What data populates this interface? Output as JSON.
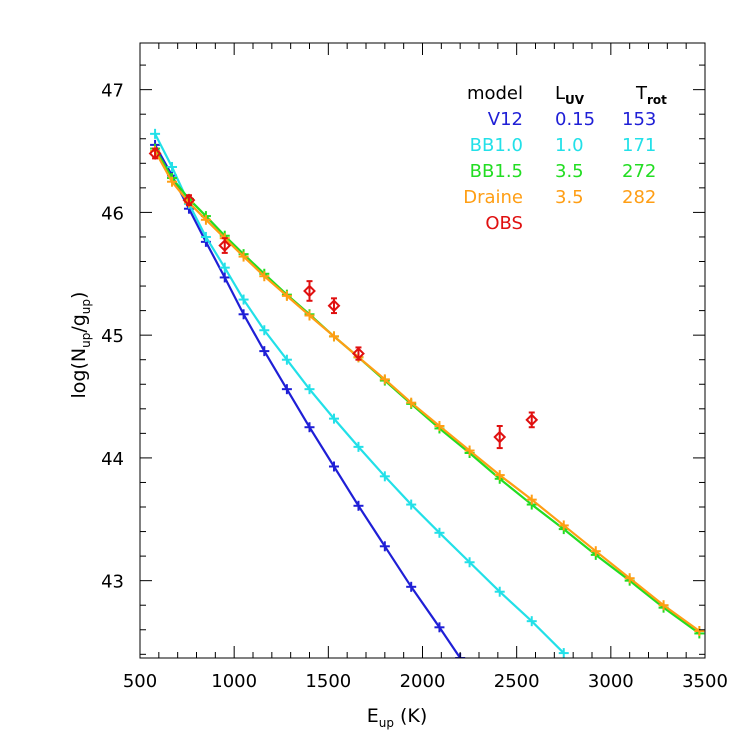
{
  "chart_data": {
    "type": "line",
    "xlabel": "E",
    "xlabel_sub": "up",
    "xlabel_unit": "(K)",
    "ylabel_parts": [
      "log(N",
      "up",
      "/g",
      "up",
      ")"
    ],
    "xlim": [
      500,
      3500
    ],
    "ylim": [
      42.37,
      47.38
    ],
    "x_ticks": [
      500,
      1000,
      1500,
      2000,
      2500,
      3000,
      3500
    ],
    "y_ticks": [
      43,
      44,
      45,
      46,
      47
    ],
    "legend": {
      "placement": "top-right",
      "headers": {
        "model": "model",
        "luv": "L",
        "luv_sub": "UV",
        "trot": "T",
        "trot_sub": "rot"
      },
      "rows": [
        {
          "model": "V12",
          "luv": "0.15",
          "trot": "153",
          "color": "#1f1fd6"
        },
        {
          "model": "BB1.0",
          "luv": "1.0",
          "trot": "171",
          "color": "#22e0e8"
        },
        {
          "model": "BB1.5",
          "luv": "3.5",
          "trot": "272",
          "color": "#22dd22"
        },
        {
          "model": "Draine",
          "luv": "3.5",
          "trot": "282",
          "color": "#ff9e14"
        },
        {
          "model": "OBS",
          "luv": "",
          "trot": "",
          "color": "#e01010"
        }
      ]
    },
    "series": [
      {
        "name": "V12",
        "color": "#1f1fd6",
        "x": [
          580,
          670,
          760,
          850,
          950,
          1050,
          1160,
          1280,
          1400,
          1530,
          1660,
          1800,
          1940,
          2090,
          2200
        ],
        "y": [
          46.55,
          46.3,
          46.03,
          45.76,
          45.47,
          45.17,
          44.87,
          44.56,
          44.25,
          43.93,
          43.61,
          43.28,
          42.95,
          42.62,
          42.37
        ]
      },
      {
        "name": "BB1.0",
        "color": "#22e0e8",
        "x": [
          580,
          670,
          760,
          850,
          950,
          1050,
          1160,
          1280,
          1400,
          1530,
          1660,
          1800,
          1940,
          2090,
          2250,
          2410,
          2580,
          2750
        ],
        "y": [
          46.64,
          46.37,
          46.07,
          45.8,
          45.55,
          45.29,
          45.04,
          44.8,
          44.56,
          44.32,
          44.09,
          43.85,
          43.62,
          43.39,
          43.15,
          42.91,
          42.67,
          42.41
        ]
      },
      {
        "name": "BB1.5",
        "color": "#22dd22",
        "x": [
          580,
          670,
          760,
          850,
          950,
          1050,
          1160,
          1280,
          1400,
          1530,
          1660,
          1800,
          1940,
          2090,
          2250,
          2410,
          2580,
          2750,
          2920,
          3100,
          3280,
          3470
        ],
        "y": [
          46.52,
          46.28,
          46.11,
          45.97,
          45.81,
          45.66,
          45.5,
          45.33,
          45.17,
          44.99,
          44.82,
          44.63,
          44.44,
          44.24,
          44.04,
          43.83,
          43.62,
          43.42,
          43.21,
          43.0,
          42.78,
          42.57
        ]
      },
      {
        "name": "Draine",
        "color": "#ff9e14",
        "x": [
          580,
          670,
          760,
          850,
          950,
          1050,
          1160,
          1280,
          1400,
          1530,
          1660,
          1800,
          1940,
          2090,
          2250,
          2410,
          2580,
          2750,
          2920,
          3100,
          3280,
          3470
        ],
        "y": [
          46.5,
          46.25,
          46.08,
          45.94,
          45.79,
          45.64,
          45.48,
          45.32,
          45.16,
          44.99,
          44.82,
          44.64,
          44.45,
          44.26,
          44.06,
          43.86,
          43.66,
          43.45,
          43.24,
          43.02,
          42.8,
          42.59
        ]
      }
    ],
    "observations": {
      "name": "OBS",
      "color": "#e01010",
      "x": [
        580,
        760,
        950,
        1400,
        1530,
        1660,
        2410,
        2580
      ],
      "y": [
        46.48,
        46.1,
        45.73,
        45.36,
        45.24,
        44.85,
        44.17,
        44.31
      ],
      "err": [
        0.04,
        0.04,
        0.06,
        0.08,
        0.06,
        0.05,
        0.09,
        0.06
      ]
    }
  }
}
